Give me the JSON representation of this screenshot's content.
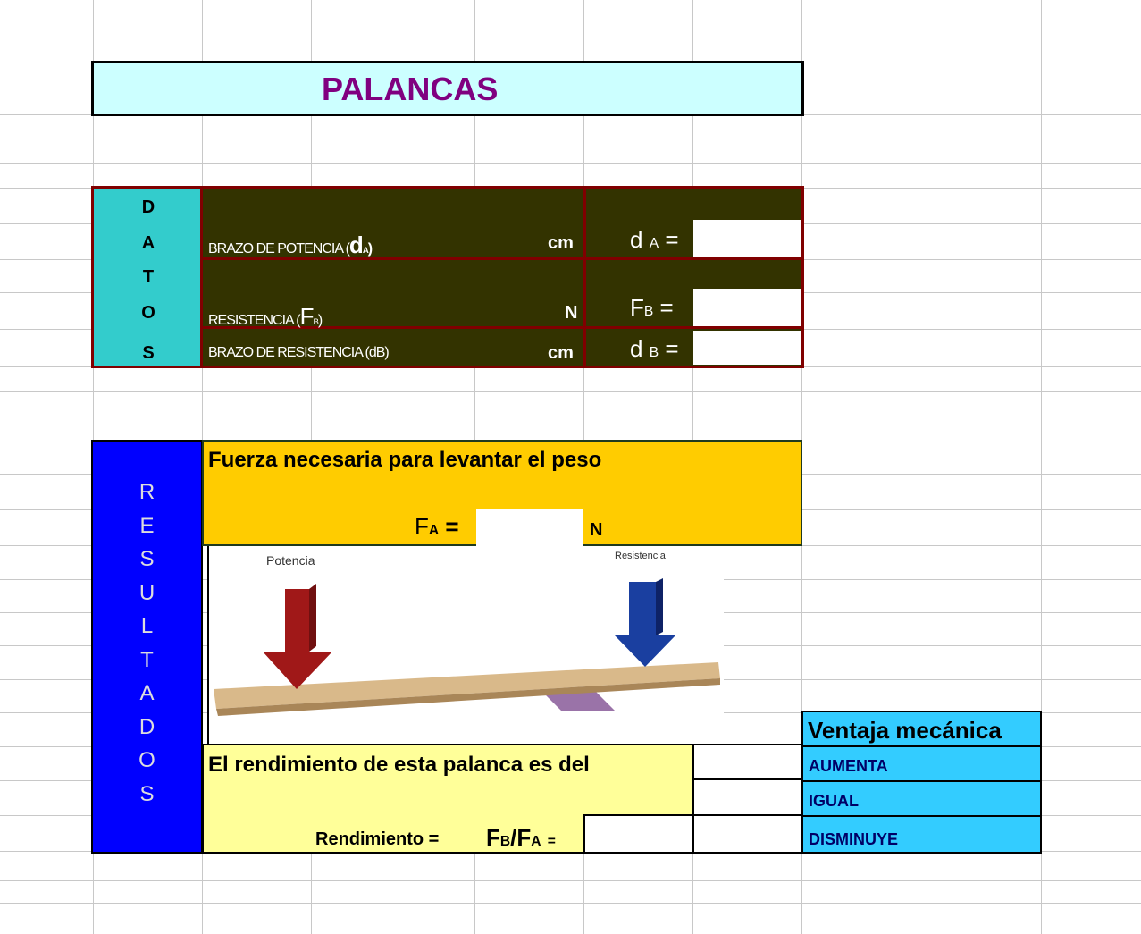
{
  "title": "PALANCAS",
  "datos": {
    "letters": [
      "D",
      "A",
      "T",
      "O",
      "S"
    ],
    "rows": [
      {
        "label": "BRAZO DE POTENCIA (",
        "symbol": "d",
        "sub": "A",
        "close": ")",
        "unit": "cm",
        "var": "d",
        "var_sub": "A",
        "eq": "="
      },
      {
        "label": "RESISTENCIA (",
        "symbol": "F",
        "sub": "B",
        "close": ")",
        "unit": "N",
        "var": "F",
        "var_sub": "B",
        "eq": "="
      },
      {
        "label": "BRAZO DE RESISTENCIA (dB)",
        "unit": "cm",
        "var": "d",
        "var_sub": "B",
        "eq": "="
      }
    ]
  },
  "resultados": {
    "letters": [
      "R",
      "E",
      "S",
      "U",
      "L",
      "T",
      "A",
      "D",
      "O",
      "S"
    ],
    "fuerza": {
      "text": "Fuerza necesaria para levantar el peso",
      "var": "F",
      "sub": "A",
      "eq": "=",
      "unit": "N"
    },
    "image": {
      "left": "Potencia",
      "right": "Resistencia"
    },
    "rendimiento": {
      "text": "El rendimiento de esta palanca es del",
      "formula_label": "Rendimiento =",
      "num": "F",
      "num_sub": "B",
      "slash": "/",
      "den": "F",
      "den_sub": "A",
      "eq": "="
    }
  },
  "ventaja": {
    "header": "Ventaja mecánica",
    "options": [
      "AUMENTA",
      "IGUAL",
      "DISMINUYE"
    ]
  }
}
